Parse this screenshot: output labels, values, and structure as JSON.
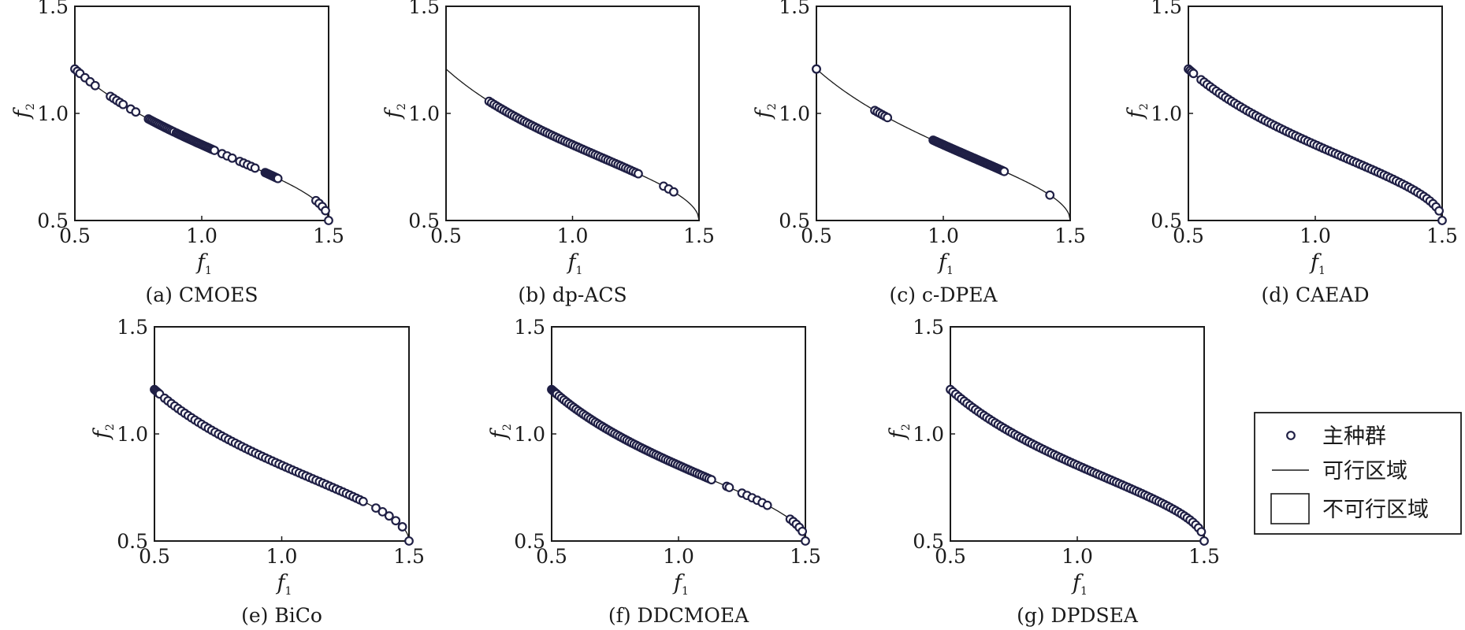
{
  "chart_data": [
    {
      "type": "scatter",
      "caption": "(a) CMOES",
      "xlabel": "f1",
      "ylabel": "f2",
      "xlim": [
        0.5,
        1.5
      ],
      "ylim": [
        0.5,
        1.5
      ],
      "xticks": [
        "0.5",
        "1.0",
        "1.5"
      ],
      "yticks": [
        "0.5",
        "1.0",
        "1.5"
      ],
      "curve_start": 0.5,
      "curve_end": 1.5,
      "clusters": [
        [
          0.5,
          0.52,
          3
        ],
        [
          0.54,
          0.58,
          3
        ],
        [
          0.64,
          0.69,
          5
        ],
        [
          0.72,
          0.74,
          2
        ],
        [
          0.79,
          0.89,
          16
        ],
        [
          0.9,
          1.05,
          26
        ],
        [
          1.08,
          1.12,
          3
        ],
        [
          1.15,
          1.21,
          5
        ],
        [
          1.25,
          1.3,
          12
        ],
        [
          1.45,
          1.5,
          5
        ]
      ]
    },
    {
      "type": "scatter",
      "caption": "(b) dp-ACS",
      "xlabel": "f1",
      "ylabel": "f2",
      "xlim": [
        0.5,
        1.5
      ],
      "ylim": [
        0.5,
        1.5
      ],
      "xticks": [
        "0.5",
        "1.0",
        "1.5"
      ],
      "yticks": [
        "0.5",
        "1.0",
        "1.5"
      ],
      "curve_start": 0.5,
      "curve_end": 1.5,
      "clusters": [
        [
          0.67,
          1.26,
          60
        ],
        [
          1.36,
          1.4,
          3
        ]
      ]
    },
    {
      "type": "scatter",
      "caption": "(c) c-DPEA",
      "xlabel": "f1",
      "ylabel": "f2",
      "xlim": [
        0.5,
        1.5
      ],
      "ylim": [
        0.5,
        1.5
      ],
      "xticks": [
        "0.5",
        "1.0",
        "1.5"
      ],
      "yticks": [
        "0.5",
        "1.0",
        "1.5"
      ],
      "curve_start": 0.5,
      "curve_end": 1.5,
      "clusters": [
        [
          0.5,
          0.5,
          2
        ],
        [
          0.73,
          0.78,
          6
        ],
        [
          0.96,
          1.24,
          50
        ],
        [
          1.42,
          1.42,
          1
        ]
      ]
    },
    {
      "type": "scatter",
      "caption": "(d) CAEAD",
      "xlabel": "f1",
      "ylabel": "f2",
      "xlim": [
        0.5,
        1.5
      ],
      "ylim": [
        0.5,
        1.5
      ],
      "xticks": [
        "0.5",
        "1.0",
        "1.5"
      ],
      "yticks": [
        "0.5",
        "1.0",
        "1.5"
      ],
      "curve_start": 0.5,
      "curve_end": 1.5,
      "clusters": [
        [
          0.5,
          0.52,
          4
        ],
        [
          0.55,
          1.5,
          80
        ]
      ]
    },
    {
      "type": "scatter",
      "caption": "(e) BiCo",
      "xlabel": "f1",
      "ylabel": "f2",
      "xlim": [
        0.5,
        1.5
      ],
      "ylim": [
        0.5,
        1.5
      ],
      "xticks": [
        "0.5",
        "1.0",
        "1.5"
      ],
      "yticks": [
        "0.5",
        "1.0",
        "1.5"
      ],
      "curve_start": 0.5,
      "curve_end": 1.5,
      "clusters": [
        [
          0.5,
          0.52,
          5
        ],
        [
          0.54,
          1.32,
          60
        ],
        [
          1.37,
          1.5,
          6
        ]
      ]
    },
    {
      "type": "scatter",
      "caption": "(f) DDCMOEA",
      "xlabel": "f1",
      "ylabel": "f2",
      "xlim": [
        0.5,
        1.5
      ],
      "ylim": [
        0.5,
        1.5
      ],
      "xticks": [
        "0.5",
        "1.0",
        "1.5"
      ],
      "yticks": [
        "0.5",
        "1.0",
        "1.5"
      ],
      "curve_start": 0.5,
      "curve_end": 1.5,
      "clusters": [
        [
          0.5,
          0.52,
          8
        ],
        [
          0.52,
          1.13,
          65
        ],
        [
          1.19,
          1.2,
          2
        ],
        [
          1.25,
          1.35,
          6
        ],
        [
          1.44,
          1.5,
          6
        ]
      ]
    },
    {
      "type": "scatter",
      "caption": "(g) DPDSEA",
      "xlabel": "f1",
      "ylabel": "f2",
      "xlim": [
        0.5,
        1.5
      ],
      "ylim": [
        0.5,
        1.5
      ],
      "xticks": [
        "0.5",
        "1.0",
        "1.5"
      ],
      "yticks": [
        "0.5",
        "1.0",
        "1.5"
      ],
      "curve_start": 0.5,
      "curve_end": 1.5,
      "clusters": [
        [
          0.5,
          0.5,
          1
        ],
        [
          0.51,
          1.5,
          90
        ]
      ]
    }
  ],
  "legend": {
    "items": [
      "主种群",
      "可行区域",
      "不可行区域"
    ]
  },
  "colors": {
    "marker_fill": "#ffffff",
    "marker_edge": "#1f1f45",
    "curve": "#1a1a1a",
    "axes": "#1a1a1a"
  }
}
